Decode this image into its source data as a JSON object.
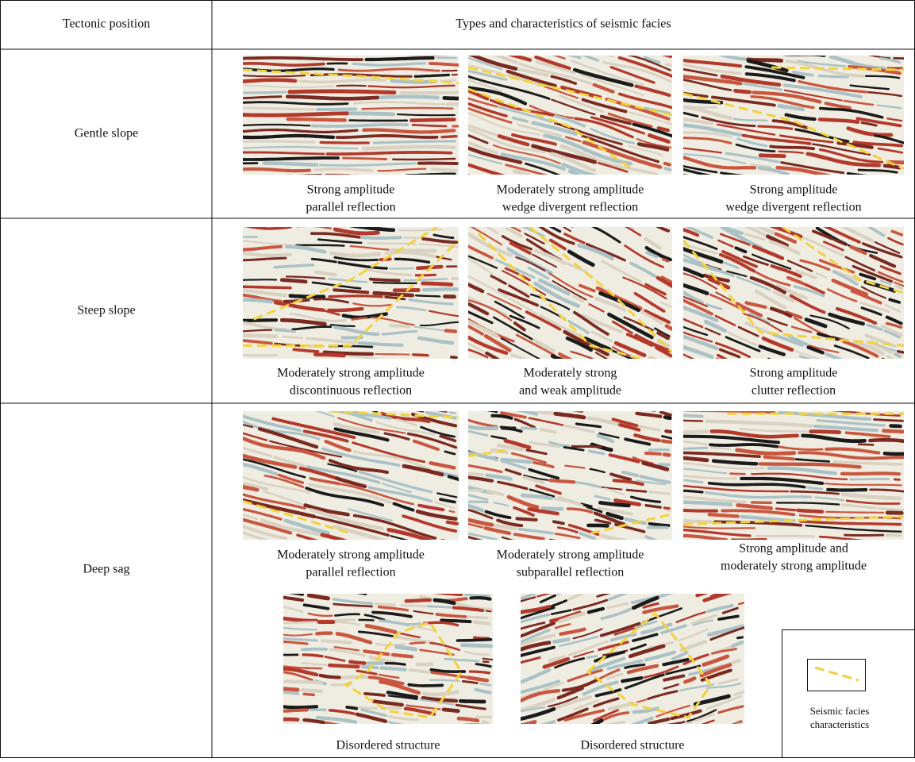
{
  "header": {
    "position": "Tectonic position",
    "facies": "Types and characteristics of seismic facies"
  },
  "rows": [
    {
      "position": "Gentle slope",
      "facies": [
        {
          "caption": [
            "Strong amplitude",
            "parallel reflection"
          ]
        },
        {
          "caption": [
            "Moderately strong amplitude",
            "wedge divergent reflection"
          ]
        },
        {
          "caption": [
            "Strong amplitude",
            "wedge divergent reflection"
          ]
        }
      ]
    },
    {
      "position": "Steep slope",
      "facies": [
        {
          "caption": [
            "Moderately strong amplitude",
            "discontinuous reflection"
          ]
        },
        {
          "caption": [
            "Moderately strong",
            "and weak amplitude"
          ]
        },
        {
          "caption": [
            "Strong amplitude",
            "clutter reflection"
          ]
        }
      ]
    },
    {
      "position": "Deep sag",
      "facies": [
        {
          "caption": [
            "Moderately strong amplitude",
            "parallel reflection"
          ]
        },
        {
          "caption": [
            "Moderately strong amplitude",
            "subparallel reflection"
          ]
        },
        {
          "caption": [
            "Strong amplitude and",
            "moderately strong amplitude"
          ]
        },
        {
          "caption": [
            "Disordered structure"
          ]
        },
        {
          "caption": [
            "Disordered structure"
          ]
        }
      ]
    }
  ],
  "legend": {
    "label": [
      "Seismic facies",
      "characteristics"
    ]
  }
}
